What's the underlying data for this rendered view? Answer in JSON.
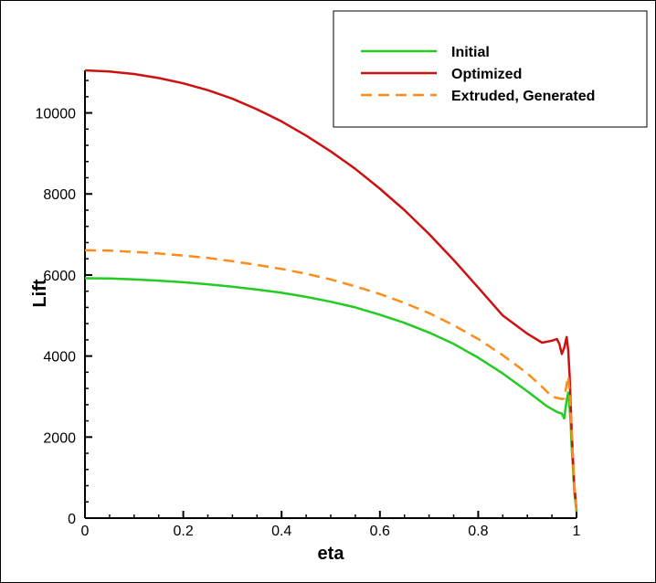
{
  "chart_data": {
    "type": "line",
    "title": "",
    "xlabel": "eta",
    "ylabel": "Lift",
    "xlim": [
      0,
      1
    ],
    "ylim": [
      0,
      11000
    ],
    "x_ticks": [
      0,
      0.2,
      0.4,
      0.6,
      0.8,
      1
    ],
    "x_tick_labels": [
      "0",
      "0.2",
      "0.4",
      "0.6",
      "0.8",
      "1"
    ],
    "y_ticks": [
      0,
      2000,
      4000,
      6000,
      8000,
      10000
    ],
    "y_tick_labels": [
      "0",
      "2000",
      "4000",
      "6000",
      "8000",
      "10000"
    ],
    "grid": false,
    "legend_position": "top-right",
    "series": [
      {
        "name": "Initial",
        "color": "#22cc22",
        "dash": "solid",
        "points": [
          [
            0,
            5920
          ],
          [
            0.05,
            5915
          ],
          [
            0.1,
            5890
          ],
          [
            0.15,
            5860
          ],
          [
            0.2,
            5820
          ],
          [
            0.25,
            5770
          ],
          [
            0.3,
            5710
          ],
          [
            0.35,
            5640
          ],
          [
            0.4,
            5560
          ],
          [
            0.45,
            5460
          ],
          [
            0.5,
            5340
          ],
          [
            0.55,
            5200
          ],
          [
            0.6,
            5020
          ],
          [
            0.65,
            4820
          ],
          [
            0.7,
            4580
          ],
          [
            0.75,
            4300
          ],
          [
            0.8,
            3960
          ],
          [
            0.85,
            3570
          ],
          [
            0.9,
            3130
          ],
          [
            0.94,
            2760
          ],
          [
            0.96,
            2620
          ],
          [
            0.97,
            2580
          ],
          [
            0.975,
            2460
          ],
          [
            0.98,
            2900
          ],
          [
            0.983,
            3100
          ],
          [
            0.985,
            2900
          ],
          [
            0.988,
            2400
          ],
          [
            0.99,
            1800
          ],
          [
            0.993,
            1200
          ],
          [
            0.996,
            600
          ],
          [
            1.0,
            150
          ]
        ]
      },
      {
        "name": "Optimized",
        "color": "#cc1111",
        "dash": "solid",
        "points": [
          [
            0,
            11050
          ],
          [
            0.05,
            11020
          ],
          [
            0.1,
            10960
          ],
          [
            0.15,
            10860
          ],
          [
            0.2,
            10730
          ],
          [
            0.25,
            10560
          ],
          [
            0.3,
            10350
          ],
          [
            0.35,
            10090
          ],
          [
            0.4,
            9790
          ],
          [
            0.45,
            9440
          ],
          [
            0.5,
            9050
          ],
          [
            0.55,
            8620
          ],
          [
            0.6,
            8130
          ],
          [
            0.65,
            7600
          ],
          [
            0.7,
            7010
          ],
          [
            0.75,
            6370
          ],
          [
            0.8,
            5690
          ],
          [
            0.85,
            5000
          ],
          [
            0.9,
            4550
          ],
          [
            0.93,
            4330
          ],
          [
            0.95,
            4380
          ],
          [
            0.96,
            4420
          ],
          [
            0.965,
            4300
          ],
          [
            0.97,
            4050
          ],
          [
            0.975,
            4200
          ],
          [
            0.98,
            4470
          ],
          [
            0.983,
            4150
          ],
          [
            0.986,
            3500
          ],
          [
            0.99,
            2200
          ],
          [
            0.995,
            900
          ],
          [
            1.0,
            200
          ]
        ]
      },
      {
        "name": "Extruded, Generated",
        "color": "#ff8c1a",
        "dash": "dashed",
        "points": [
          [
            0,
            6610
          ],
          [
            0.05,
            6600
          ],
          [
            0.1,
            6570
          ],
          [
            0.15,
            6530
          ],
          [
            0.2,
            6480
          ],
          [
            0.25,
            6420
          ],
          [
            0.3,
            6340
          ],
          [
            0.35,
            6250
          ],
          [
            0.4,
            6150
          ],
          [
            0.45,
            6030
          ],
          [
            0.5,
            5890
          ],
          [
            0.55,
            5720
          ],
          [
            0.6,
            5530
          ],
          [
            0.65,
            5310
          ],
          [
            0.7,
            5060
          ],
          [
            0.75,
            4760
          ],
          [
            0.8,
            4420
          ],
          [
            0.85,
            4020
          ],
          [
            0.9,
            3570
          ],
          [
            0.93,
            3240
          ],
          [
            0.95,
            3000
          ],
          [
            0.97,
            2940
          ],
          [
            0.975,
            2950
          ],
          [
            0.98,
            3300
          ],
          [
            0.983,
            3500
          ],
          [
            0.986,
            3100
          ],
          [
            0.99,
            2200
          ],
          [
            0.995,
            900
          ],
          [
            1.0,
            150
          ]
        ]
      }
    ]
  }
}
